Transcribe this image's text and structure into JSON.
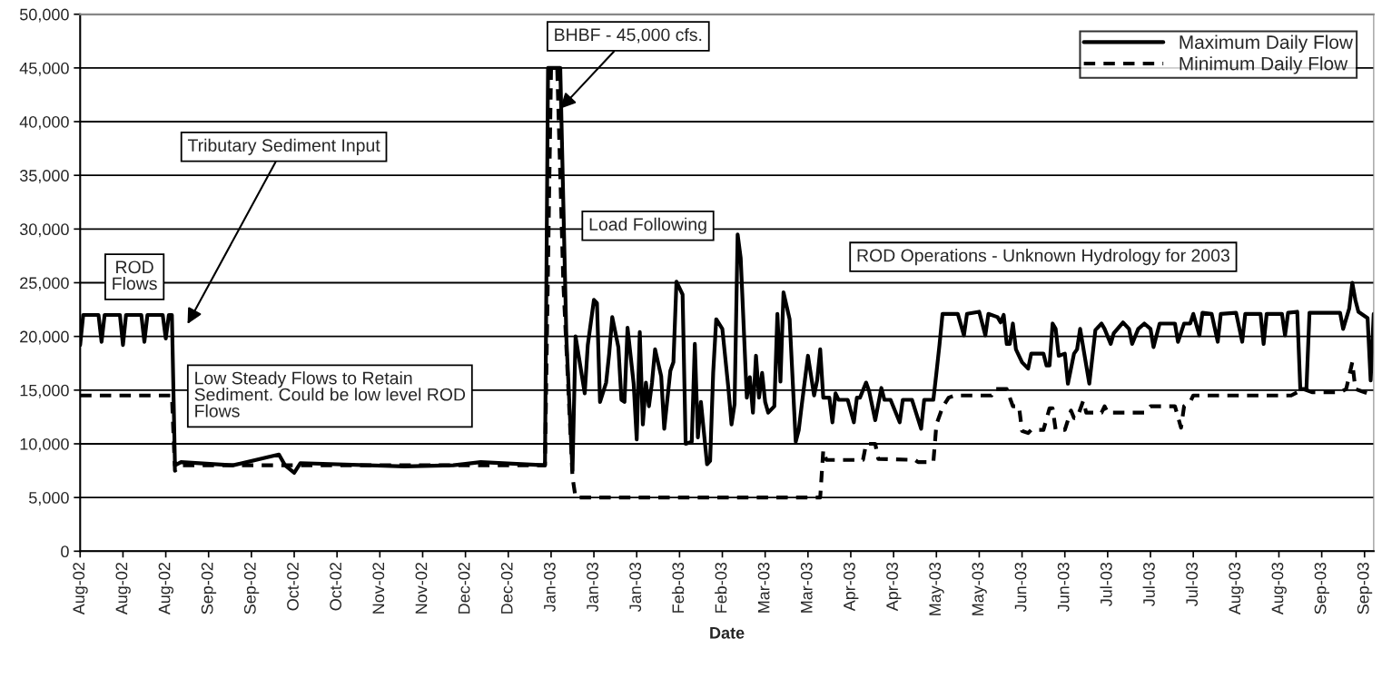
{
  "chart_data": {
    "type": "line",
    "xlabel": "Date",
    "xlim": [
      "2002-08-01",
      "2003-09-28"
    ],
    "xticks": [
      {
        "value": "2002-08-01",
        "label": "Aug-02"
      },
      {
        "value": "2002-08-15",
        "label": "Aug-02"
      },
      {
        "value": "2002-08-29",
        "label": "Aug-02"
      },
      {
        "value": "2002-09-12",
        "label": "Sep-02"
      },
      {
        "value": "2002-09-26",
        "label": "Sep-02"
      },
      {
        "value": "2002-10-10",
        "label": "Oct-02"
      },
      {
        "value": "2002-10-24",
        "label": "Oct-02"
      },
      {
        "value": "2002-11-07",
        "label": "Nov-02"
      },
      {
        "value": "2002-11-21",
        "label": "Nov-02"
      },
      {
        "value": "2002-12-05",
        "label": "Dec-02"
      },
      {
        "value": "2002-12-19",
        "label": "Dec-02"
      },
      {
        "value": "2003-01-02",
        "label": "Jan-03"
      },
      {
        "value": "2003-01-16",
        "label": "Jan-03"
      },
      {
        "value": "2003-01-30",
        "label": "Jan-03"
      },
      {
        "value": "2003-02-13",
        "label": "Feb-03"
      },
      {
        "value": "2003-02-27",
        "label": "Feb-03"
      },
      {
        "value": "2003-03-13",
        "label": "Mar-03"
      },
      {
        "value": "2003-03-27",
        "label": "Mar-03"
      },
      {
        "value": "2003-04-10",
        "label": "Apr-03"
      },
      {
        "value": "2003-04-24",
        "label": "Apr-03"
      },
      {
        "value": "2003-05-08",
        "label": "May-03"
      },
      {
        "value": "2003-05-22",
        "label": "May-03"
      },
      {
        "value": "2003-06-05",
        "label": "Jun-03"
      },
      {
        "value": "2003-06-19",
        "label": "Jun-03"
      },
      {
        "value": "2003-07-03",
        "label": "Jul-03"
      },
      {
        "value": "2003-07-17",
        "label": "Jul-03"
      },
      {
        "value": "2003-07-31",
        "label": "Jul-03"
      },
      {
        "value": "2003-08-14",
        "label": "Aug-03"
      },
      {
        "value": "2003-08-28",
        "label": "Aug-03"
      },
      {
        "value": "2003-09-11",
        "label": "Sep-03"
      },
      {
        "value": "2003-09-25",
        "label": "Sep-03"
      }
    ],
    "ylim": [
      0,
      50000
    ],
    "yticks": [
      0,
      {
        "value": 5000,
        "label": "5,000"
      },
      {
        "value": 10000,
        "label": "10,000"
      },
      {
        "value": 15000,
        "label": "15,000"
      },
      {
        "value": 20000,
        "label": "20,000"
      },
      {
        "value": 25000,
        "label": "25,000"
      },
      {
        "value": 30000,
        "label": "30,000"
      },
      {
        "value": 35000,
        "label": "35,000"
      },
      {
        "value": 40000,
        "label": "40,000"
      },
      {
        "value": 45000,
        "label": "45,000"
      },
      {
        "value": 50000,
        "label": "50,000"
      }
    ],
    "grid": "y",
    "legend": "top right",
    "marker": "none",
    "annotations": [
      "ROD\nFlows",
      "Tributary Sediment Input",
      {
        "text": "BHBF - 45,000 cfs.",
        "x": "2003-01-05",
        "y": 41200
      },
      "Load Following",
      "Low Steady Flows to Retain\nSediment. Could be low level ROD\nFlows",
      "ROD Operations - Unknown Hydrology for 2003"
    ],
    "series": [
      {
        "name": "Maximum Daily Flow",
        "color": "#000000",
        "line_style": "solid",
        "x": [
          "2002-08-01",
          "2002-08-02",
          "2002-08-07",
          "2002-08-08",
          "2002-08-09",
          "2002-08-14",
          "2002-08-15",
          "2002-08-16",
          "2002-08-21",
          "2002-08-22",
          "2002-08-23",
          "2002-08-28",
          "2002-08-29",
          "2002-08-30",
          "2002-08-31",
          "2002-09-01",
          "2002-09-03",
          "2002-09-20",
          "2002-10-05",
          "2002-10-07",
          "2002-10-10",
          "2002-10-12",
          "2002-11-15",
          "2002-12-01",
          "2002-12-10",
          "2002-12-31",
          "2003-01-01",
          "2003-01-05",
          "2003-01-07",
          "2003-01-09",
          "2003-01-10",
          "2003-01-13",
          "2003-01-14",
          "2003-01-16",
          "2003-01-17",
          "2003-01-18",
          "2003-01-20",
          "2003-01-21",
          "2003-01-22",
          "2003-01-24",
          "2003-01-25",
          "2003-01-26",
          "2003-01-27",
          "2003-01-29",
          "2003-01-30",
          "2003-01-31",
          "2003-02-01",
          "2003-02-02",
          "2003-02-03",
          "2003-02-04",
          "2003-02-05",
          "2003-02-07",
          "2003-02-08",
          "2003-02-10",
          "2003-02-11",
          "2003-02-12",
          "2003-02-14",
          "2003-02-15",
          "2003-02-17",
          "2003-02-18",
          "2003-02-19",
          "2003-02-20",
          "2003-02-22",
          "2003-02-23",
          "2003-02-24",
          "2003-02-25",
          "2003-02-27",
          "2003-03-01",
          "2003-03-02",
          "2003-03-03",
          "2003-03-04",
          "2003-03-05",
          "2003-03-07",
          "2003-03-08",
          "2003-03-09",
          "2003-03-10",
          "2003-03-11",
          "2003-03-12",
          "2003-03-13",
          "2003-03-14",
          "2003-03-16",
          "2003-03-17",
          "2003-03-18",
          "2003-03-19",
          "2003-03-21",
          "2003-03-23",
          "2003-03-24",
          "2003-03-25",
          "2003-03-27",
          "2003-03-29",
          "2003-03-30",
          "2003-03-31",
          "2003-04-01",
          "2003-04-03",
          "2003-04-04",
          "2003-04-05",
          "2003-04-06",
          "2003-04-09",
          "2003-04-11",
          "2003-04-12",
          "2003-04-13",
          "2003-04-15",
          "2003-04-16",
          "2003-04-18",
          "2003-04-20",
          "2003-04-21",
          "2003-04-23",
          "2003-04-26",
          "2003-04-27",
          "2003-04-30",
          "2003-05-03",
          "2003-05-04",
          "2003-05-07",
          "2003-05-08",
          "2003-05-09",
          "2003-05-10",
          "2003-05-15",
          "2003-05-17",
          "2003-05-18",
          "2003-05-22",
          "2003-05-24",
          "2003-05-25",
          "2003-05-28",
          "2003-05-29",
          "2003-05-30",
          "2003-05-31",
          "2003-06-01",
          "2003-06-02",
          "2003-06-03",
          "2003-06-05",
          "2003-06-07",
          "2003-06-08",
          "2003-06-12",
          "2003-06-13",
          "2003-06-14",
          "2003-06-15",
          "2003-06-16",
          "2003-06-17",
          "2003-06-19",
          "2003-06-20",
          "2003-06-22",
          "2003-06-23",
          "2003-06-24",
          "2003-06-27",
          "2003-06-29",
          "2003-07-01",
          "2003-07-02",
          "2003-07-04",
          "2003-07-05",
          "2003-07-08",
          "2003-07-10",
          "2003-07-11",
          "2003-07-13",
          "2003-07-15",
          "2003-07-17",
          "2003-07-18",
          "2003-07-20",
          "2003-07-25",
          "2003-07-26",
          "2003-07-28",
          "2003-07-30",
          "2003-07-31",
          "2003-08-02",
          "2003-08-03",
          "2003-08-06",
          "2003-08-08",
          "2003-08-09",
          "2003-08-14",
          "2003-08-16",
          "2003-08-17",
          "2003-08-22",
          "2003-08-23",
          "2003-08-24",
          "2003-08-29",
          "2003-08-30",
          "2003-08-31",
          "2003-09-03",
          "2003-09-04",
          "2003-09-06",
          "2003-09-07",
          "2003-09-17",
          "2003-09-18",
          "2003-09-20",
          "2003-09-21",
          "2003-09-22",
          "2003-09-23",
          "2003-09-26",
          "2003-09-27",
          "2003-09-28"
        ],
        "values": [
          19200,
          22000,
          22000,
          19500,
          22000,
          22000,
          19200,
          22000,
          22000,
          19500,
          22000,
          22000,
          19800,
          22000,
          22000,
          8000,
          8300,
          8000,
          9000,
          8000,
          7300,
          8200,
          7900,
          8000,
          8300,
          8000,
          45000,
          45000,
          19800,
          7500,
          20000,
          14700,
          19200,
          23400,
          23100,
          13900,
          15700,
          18400,
          21800,
          19000,
          14100,
          13900,
          20800,
          15600,
          10400,
          20400,
          11800,
          15700,
          13500,
          15700,
          18800,
          16300,
          11400,
          16800,
          17600,
          25100,
          23900,
          10000,
          10200,
          19300,
          10600,
          13900,
          8100,
          8400,
          16600,
          21600,
          20700,
          15100,
          11800,
          13700,
          29500,
          27300,
          14300,
          16200,
          12900,
          18200,
          14300,
          16600,
          13900,
          12900,
          13500,
          22100,
          15800,
          24100,
          21600,
          10200,
          11300,
          13700,
          18200,
          14500,
          15900,
          18800,
          14300,
          14300,
          12000,
          14700,
          14100,
          14100,
          12000,
          14300,
          14300,
          15700,
          14900,
          12200,
          15200,
          14100,
          14100,
          12000,
          14100,
          14100,
          11400,
          14100,
          14100,
          16600,
          19200,
          22100,
          22100,
          20100,
          22100,
          22300,
          20100,
          22100,
          21800,
          21300,
          22000,
          19300,
          19300,
          21200,
          18800,
          17600,
          17000,
          18400,
          18400,
          17300,
          17300,
          21200,
          20700,
          18200,
          18400,
          15600,
          18400,
          18800,
          20700,
          15600,
          20600,
          21200,
          20700,
          19300,
          20300,
          21300,
          20700,
          19300,
          20700,
          21200,
          20700,
          19000,
          21200,
          21200,
          19500,
          21200,
          21200,
          22100,
          20100,
          22200,
          22100,
          19500,
          22100,
          22200,
          19500,
          22100,
          22100,
          19300,
          22100,
          22100,
          20100,
          22200,
          22300,
          15100,
          15100,
          22200,
          22200,
          20700,
          22600,
          25000,
          23400,
          22300,
          21700,
          15900,
          22100
        ]
      },
      {
        "name": "Minimum Daily Flow",
        "color": "#000000",
        "line_style": "dashed",
        "x": [
          "2002-08-01",
          "2002-08-31",
          "2002-09-01",
          "2002-09-03",
          "2002-12-31",
          "2003-01-02",
          "2003-01-04",
          "2003-01-06",
          "2003-01-09",
          "2003-01-10",
          "2003-03-31",
          "2003-04-01",
          "2003-04-02",
          "2003-04-14",
          "2003-04-15",
          "2003-04-18",
          "2003-04-19",
          "2003-05-01",
          "2003-05-02",
          "2003-05-07",
          "2003-05-08",
          "2003-05-10",
          "2003-05-12",
          "2003-05-14",
          "2003-05-26",
          "2003-05-27",
          "2003-05-31",
          "2003-06-02",
          "2003-06-04",
          "2003-06-05",
          "2003-06-07",
          "2003-06-08",
          "2003-06-12",
          "2003-06-14",
          "2003-06-15",
          "2003-06-16",
          "2003-06-19",
          "2003-06-21",
          "2003-06-22",
          "2003-06-23",
          "2003-06-25",
          "2003-06-26",
          "2003-07-01",
          "2003-07-02",
          "2003-07-03",
          "2003-07-15",
          "2003-07-17",
          "2003-07-25",
          "2003-07-27",
          "2003-07-28",
          "2003-07-30",
          "2003-07-31",
          "2003-09-01",
          "2003-09-03",
          "2003-09-05",
          "2003-09-08",
          "2003-09-17",
          "2003-09-19",
          "2003-09-21",
          "2003-09-22",
          "2003-09-24",
          "2003-09-28"
        ],
        "values": [
          14500,
          14500,
          7500,
          8000,
          8000,
          45000,
          45000,
          25000,
          6900,
          5000,
          5000,
          9400,
          8500,
          8500,
          10000,
          10000,
          8600,
          8500,
          8300,
          8300,
          11800,
          13400,
          14300,
          14500,
          14500,
          15100,
          15100,
          13500,
          13500,
          11200,
          11000,
          11300,
          11300,
          13300,
          13300,
          11300,
          11300,
          13100,
          12400,
          12400,
          14000,
          12900,
          12900,
          13500,
          12900,
          12900,
          13500,
          13500,
          11500,
          13500,
          13900,
          14500,
          14500,
          14800,
          15100,
          14800,
          14800,
          15100,
          17600,
          15100,
          14900,
          14500
        ]
      }
    ]
  }
}
